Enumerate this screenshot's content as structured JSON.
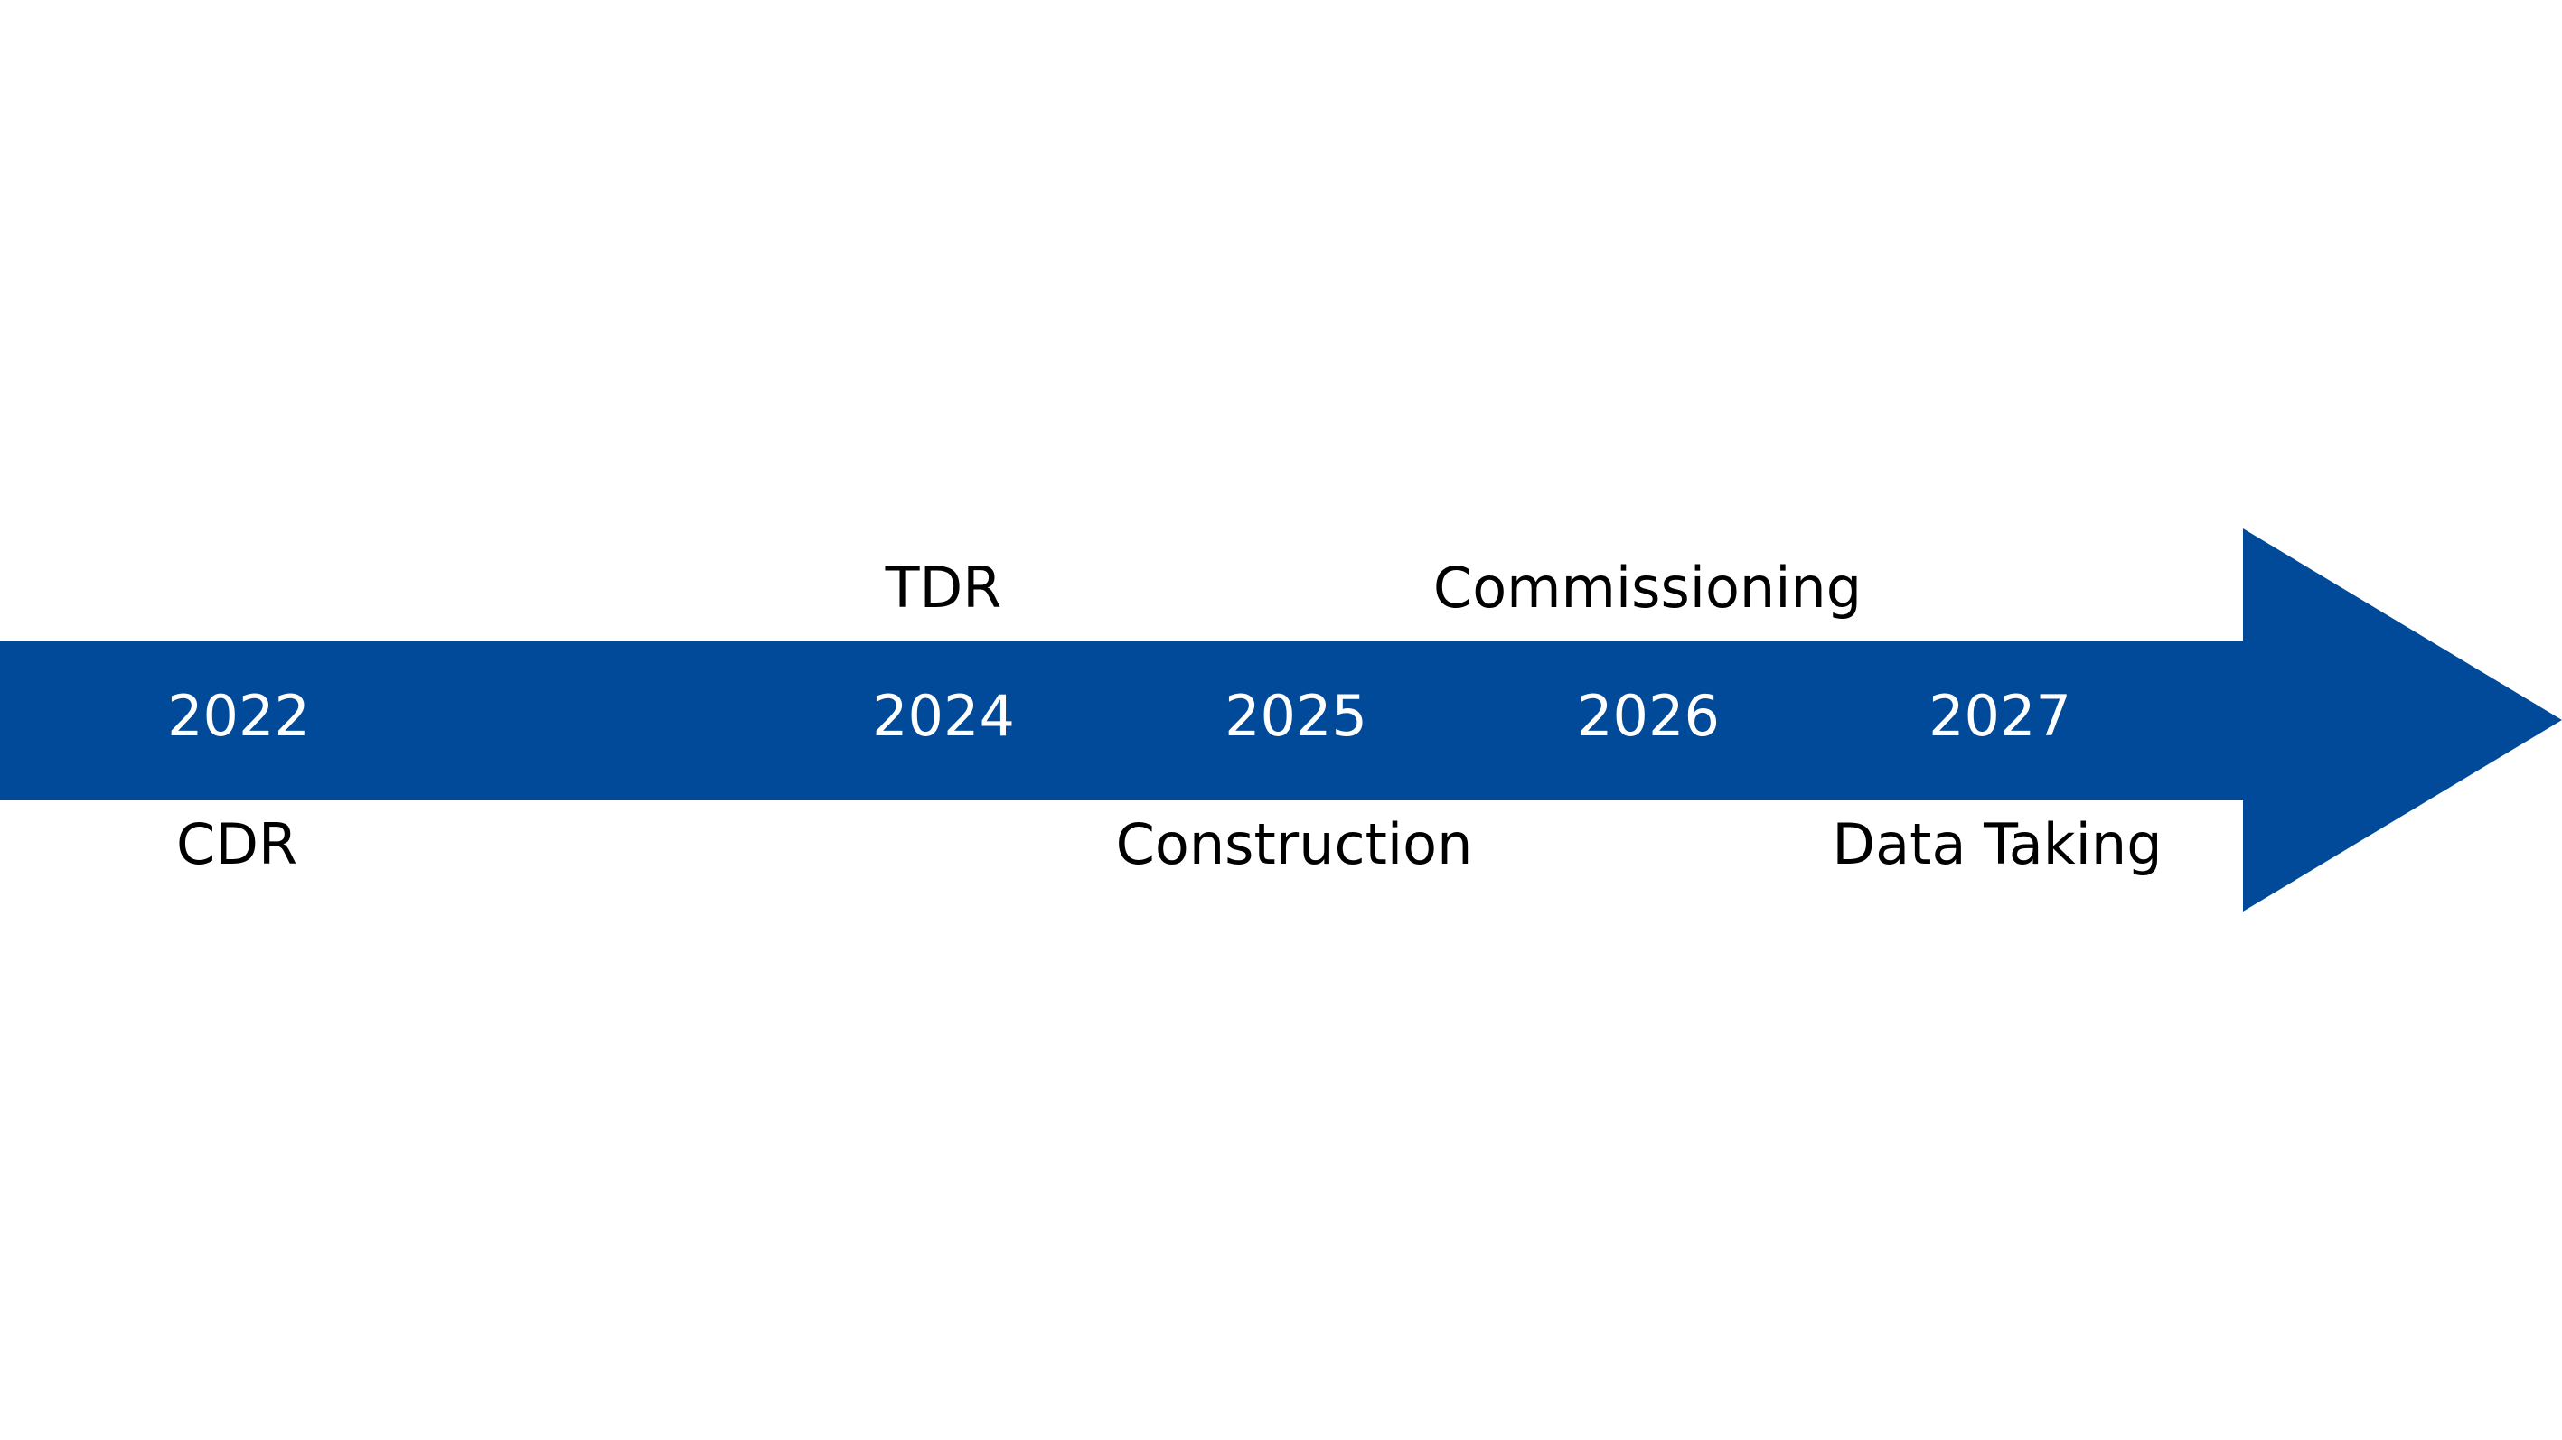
{
  "colors": {
    "arrow": "#004a99",
    "year_text": "#ffffff",
    "event_text": "#000000",
    "background": "#ffffff"
  },
  "timeline": {
    "years": [
      "2022",
      "2024",
      "2025",
      "2026",
      "2027"
    ],
    "events": {
      "cdr": "CDR",
      "tdr": "TDR",
      "construction": "Construction",
      "commissioning": "Commissioning",
      "data_taking": "Data Taking"
    }
  }
}
